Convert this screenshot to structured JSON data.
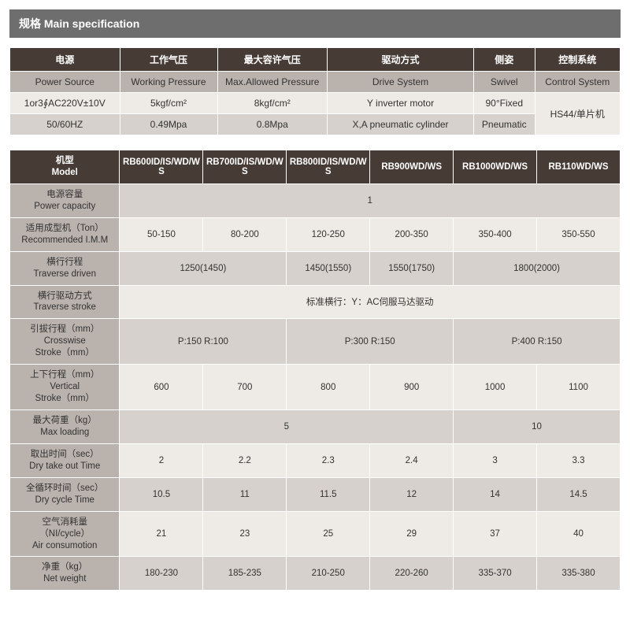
{
  "colors": {
    "title_bg": "#6e6e6e",
    "title_fg": "#ffffff",
    "header_dark_bg": "#473b35",
    "header_dark_fg": "#ffffff",
    "header_light_bg": "#b9b2ad",
    "cell_alt_bg": "#d6d1cc",
    "cell_ltr_bg": "#eeeae6",
    "border": "#ffffff",
    "page_bg": "#ffffff",
    "text": "#333333"
  },
  "typography": {
    "base_fontsize": 12,
    "title_fontsize": 14,
    "table2_fontsize": 11.5,
    "font_family": "Arial / Microsoft YaHei"
  },
  "title": "规格 Main specification",
  "table1": {
    "type": "table",
    "col_widths_pct": [
      18,
      16,
      18,
      24,
      10,
      14
    ],
    "row1": [
      "电源",
      "工作气压",
      "最大容许气压",
      "驱动方式",
      "侧姿",
      "控制系统"
    ],
    "row2": [
      "Power Source",
      "Working Pressure",
      "Max.Allowed Pressure",
      "Drive System",
      "Swivel",
      "Control System"
    ],
    "row3": [
      "1or3∮AC220V±10V",
      "5kgf/cm²",
      "8kgf/cm²",
      "Y inverter motor",
      "90°Fixed",
      "HS44/单片机"
    ],
    "row4": [
      "50/60HZ",
      "0.49Mpa",
      "0.8Mpa",
      "X,A pneumatic cylinder",
      "Pneumatic",
      ""
    ]
  },
  "table2": {
    "type": "table",
    "col_widths_pct": [
      18,
      13.67,
      13.67,
      13.67,
      13.67,
      13.67,
      13.67
    ],
    "header": {
      "label_cn": "机型",
      "label_en": "Model",
      "models": [
        "RB600ID/IS/WD/WS",
        "RB700ID/IS/WD/WS",
        "RB800ID/IS/WD/WS",
        "RB900WD/WS",
        "RB1000WD/WS",
        "RB110WD/WS"
      ]
    },
    "rows": [
      {
        "label_cn": "电源容量",
        "label_en": "Power capacity",
        "cells": [
          {
            "span": 6,
            "text": "1"
          }
        ]
      },
      {
        "label_cn": "适用成型机（Ton）",
        "label_en": "Recommended I.M.M",
        "cells": [
          {
            "span": 1,
            "text": "50-150"
          },
          {
            "span": 1,
            "text": "80-200"
          },
          {
            "span": 1,
            "text": "120-250"
          },
          {
            "span": 1,
            "text": "200-350"
          },
          {
            "span": 1,
            "text": "350-400"
          },
          {
            "span": 1,
            "text": "350-550"
          }
        ]
      },
      {
        "label_cn": "横行行程",
        "label_en": "Traverse driven",
        "cells": [
          {
            "span": 2,
            "text": "1250(1450)"
          },
          {
            "span": 1,
            "text": "1450(1550)"
          },
          {
            "span": 1,
            "text": "1550(1750)"
          },
          {
            "span": 2,
            "text": "1800(2000)"
          }
        ]
      },
      {
        "label_cn": "横行驱动方式",
        "label_en": "Traverse stroke",
        "cells": [
          {
            "span": 6,
            "text": "标准横行：Y：AC伺服马达驱动"
          }
        ]
      },
      {
        "label_cn": "引拔行程（mm）",
        "label_mid": "Crosswise",
        "label_en": "Stroke（mm）",
        "cells": [
          {
            "span": 2,
            "text": "P:150  R:100"
          },
          {
            "span": 2,
            "text": "P:300  R:150"
          },
          {
            "span": 2,
            "text": "P:400  R:150"
          }
        ]
      },
      {
        "label_cn": "上下行程（mm）",
        "label_mid": "Vertical",
        "label_en": "Stroke（mm）",
        "cells": [
          {
            "span": 1,
            "text": "600"
          },
          {
            "span": 1,
            "text": "700"
          },
          {
            "span": 1,
            "text": "800"
          },
          {
            "span": 1,
            "text": "900"
          },
          {
            "span": 1,
            "text": "1000"
          },
          {
            "span": 1,
            "text": "1100"
          }
        ]
      },
      {
        "label_cn": "最大荷重（kg）",
        "label_en": "Max loading",
        "cells": [
          {
            "span": 4,
            "text": "5"
          },
          {
            "span": 2,
            "text": "10"
          }
        ]
      },
      {
        "label_cn": "取出时间（sec）",
        "label_en": "Dry take out Time",
        "cells": [
          {
            "span": 1,
            "text": "2"
          },
          {
            "span": 1,
            "text": "2.2"
          },
          {
            "span": 1,
            "text": "2.3"
          },
          {
            "span": 1,
            "text": "2.4"
          },
          {
            "span": 1,
            "text": "3"
          },
          {
            "span": 1,
            "text": "3.3"
          }
        ]
      },
      {
        "label_cn": "全循环时间（sec）",
        "label_en": "Dry cycle Time",
        "cells": [
          {
            "span": 1,
            "text": "10.5"
          },
          {
            "span": 1,
            "text": "11"
          },
          {
            "span": 1,
            "text": "11.5"
          },
          {
            "span": 1,
            "text": "12"
          },
          {
            "span": 1,
            "text": "14"
          },
          {
            "span": 1,
            "text": "14.5"
          }
        ]
      },
      {
        "label_cn": "空气消耗量",
        "label_mid": "（NI/cycle）",
        "label_en": "Air consumotion",
        "cells": [
          {
            "span": 1,
            "text": "21"
          },
          {
            "span": 1,
            "text": "23"
          },
          {
            "span": 1,
            "text": "25"
          },
          {
            "span": 1,
            "text": "29"
          },
          {
            "span": 1,
            "text": "37"
          },
          {
            "span": 1,
            "text": "40"
          }
        ]
      },
      {
        "label_cn": "净重（kg）",
        "label_en": "Net weight",
        "cells": [
          {
            "span": 1,
            "text": "180-230"
          },
          {
            "span": 1,
            "text": "185-235"
          },
          {
            "span": 1,
            "text": "210-250"
          },
          {
            "span": 1,
            "text": "220-260"
          },
          {
            "span": 1,
            "text": "335-370"
          },
          {
            "span": 1,
            "text": "335-380"
          }
        ]
      }
    ]
  }
}
